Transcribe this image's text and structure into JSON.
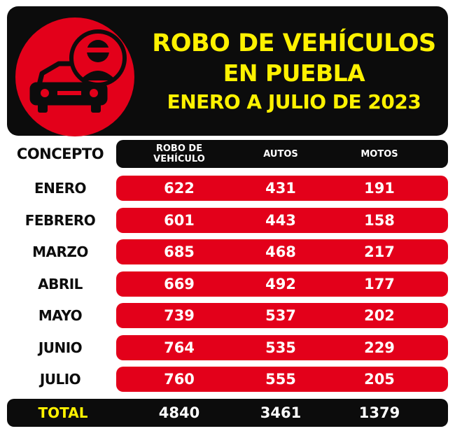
{
  "title": {
    "line1": "ROBO DE VEHÍCULOS",
    "line2": "EN PUEBLA",
    "line3": "ENERO A JULIO DE 2023"
  },
  "colors": {
    "accent_red": "#e3001a",
    "title_yellow": "#fff200",
    "dark": "#0c0c0c"
  },
  "icon": "car-thief-icon",
  "chart_data": {
    "type": "table",
    "row_header": "CONCEPTO",
    "columns": [
      {
        "line1": "ROBO DE",
        "line2": "VEHÍCULO"
      },
      {
        "line1": "AUTOS",
        "line2": ""
      },
      {
        "line1": "MOTOS",
        "line2": ""
      }
    ],
    "rows": [
      {
        "label": "ENERO",
        "values": [
          622,
          431,
          191
        ]
      },
      {
        "label": "FEBRERO",
        "values": [
          601,
          443,
          158
        ]
      },
      {
        "label": "MARZO",
        "values": [
          685,
          468,
          217
        ]
      },
      {
        "label": "ABRIL",
        "values": [
          669,
          492,
          177
        ]
      },
      {
        "label": "MAYO",
        "values": [
          739,
          537,
          202
        ]
      },
      {
        "label": "JUNIO",
        "values": [
          764,
          535,
          229
        ]
      },
      {
        "label": "JULIO",
        "values": [
          760,
          555,
          205
        ]
      }
    ],
    "total": {
      "label": "TOTAL",
      "values": [
        4840,
        3461,
        1379
      ]
    }
  }
}
